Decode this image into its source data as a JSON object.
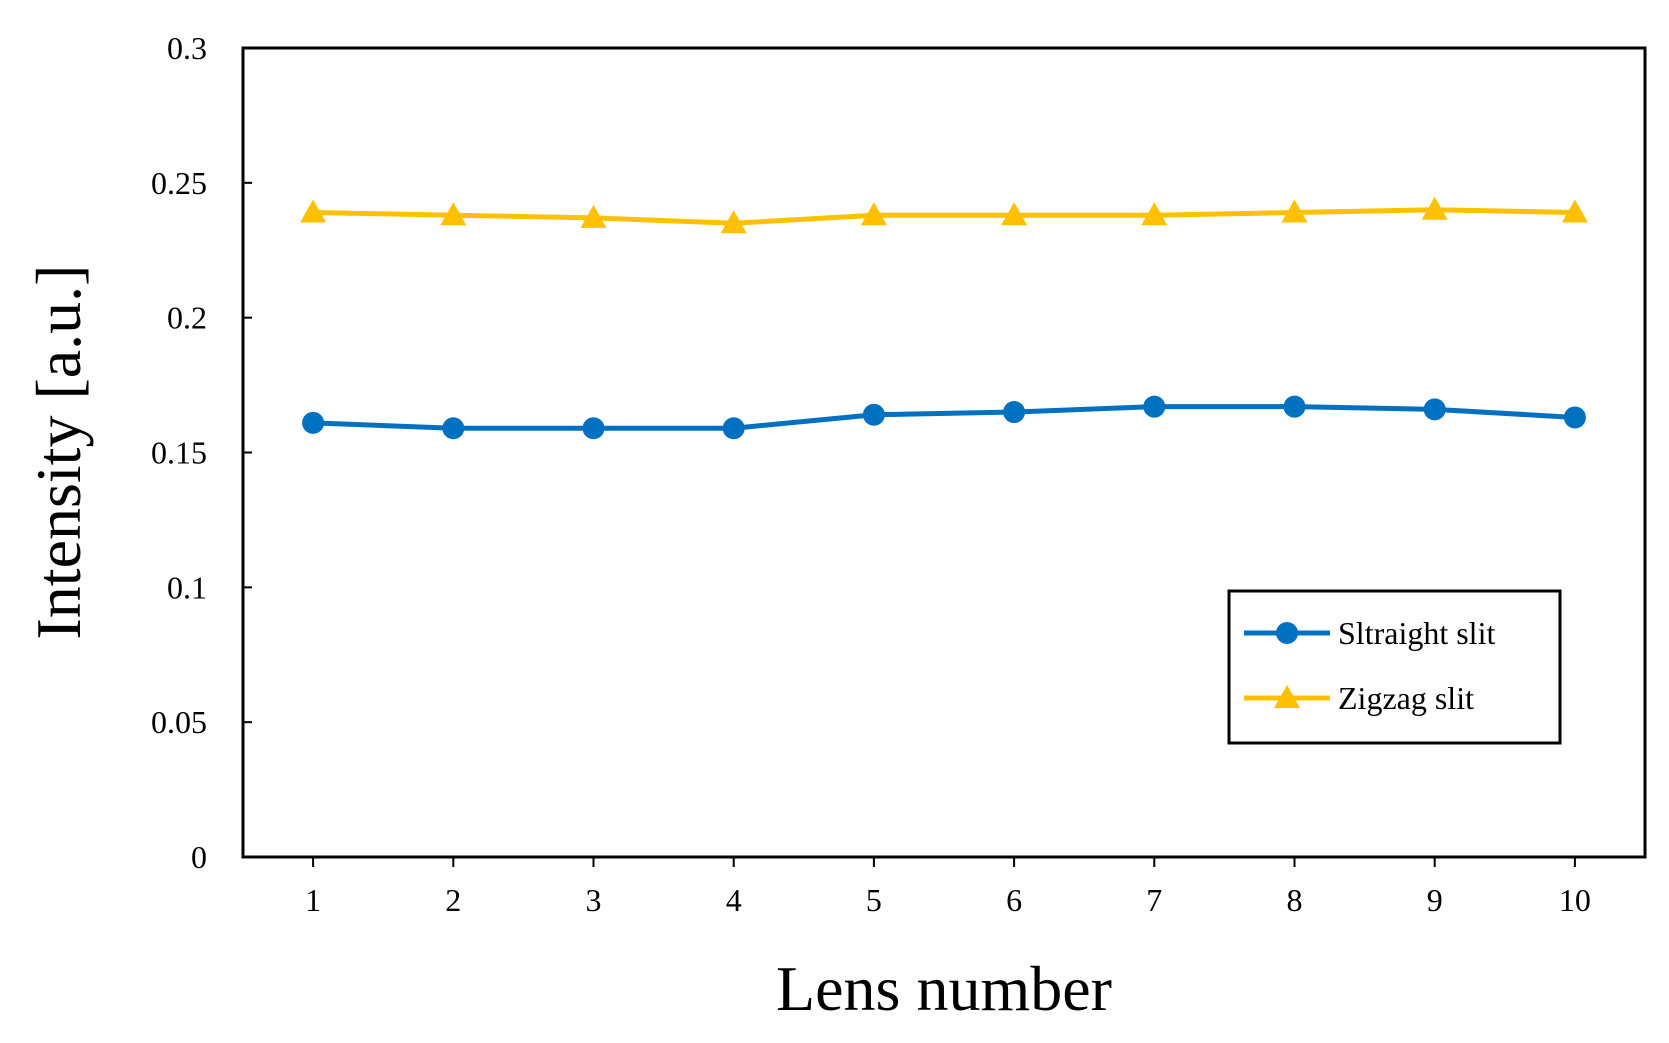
{
  "chart_data": {
    "type": "line",
    "title": "",
    "xlabel": "Lens number",
    "ylabel": "Intensity [a.u.]",
    "x": [
      1,
      2,
      3,
      4,
      5,
      6,
      7,
      8,
      9,
      10
    ],
    "xlim": [
      0.5,
      10.5
    ],
    "ylim": [
      0,
      0.3
    ],
    "yticks": [
      0,
      0.05,
      0.1,
      0.15,
      0.2,
      0.25,
      0.3
    ],
    "ytick_labels": [
      "0",
      "0.05",
      "0.1",
      "0.15",
      "0.2",
      "0.25",
      "0.3"
    ],
    "xtick_labels": [
      "1",
      "2",
      "3",
      "4",
      "5",
      "6",
      "7",
      "8",
      "9",
      "10"
    ],
    "grid": false,
    "legend_position": "bottom-right",
    "series": [
      {
        "name": "Sltraight slit",
        "marker": "circle",
        "color": "#0070C0",
        "values": [
          0.161,
          0.159,
          0.159,
          0.159,
          0.164,
          0.165,
          0.167,
          0.167,
          0.166,
          0.163
        ]
      },
      {
        "name": "Zigzag slit",
        "marker": "triangle",
        "color": "#FFC000",
        "values": [
          0.239,
          0.238,
          0.237,
          0.235,
          0.238,
          0.238,
          0.238,
          0.239,
          0.24,
          0.239
        ]
      }
    ]
  }
}
